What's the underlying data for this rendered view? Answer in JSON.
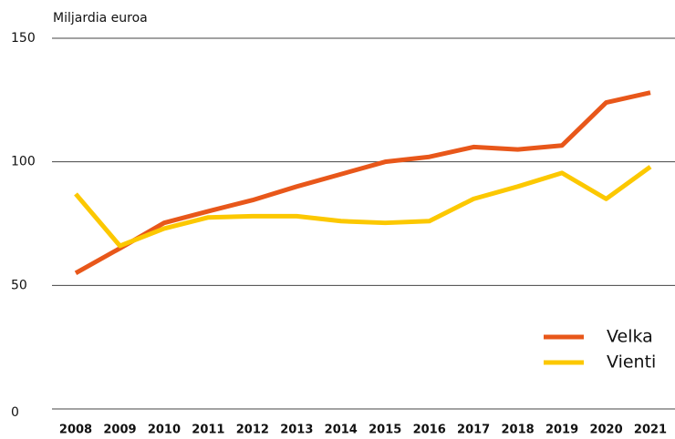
{
  "chart_data": {
    "type": "line",
    "y_label": "Miljardia euroa",
    "categories": [
      "2008",
      "2009",
      "2010",
      "2011",
      "2012",
      "2013",
      "2014",
      "2015",
      "2016",
      "2017",
      "2018",
      "2019",
      "2020",
      "2021"
    ],
    "series": [
      {
        "name": "Velka",
        "color": "#e8571a",
        "values": [
          55,
          65,
          75.3,
          80,
          84.5,
          90,
          95,
          100,
          102,
          106,
          105,
          106.6,
          124,
          128
        ]
      },
      {
        "name": "Vienti",
        "color": "#fcc800",
        "values": [
          87,
          66,
          73,
          77.5,
          78,
          78,
          76,
          75.3,
          76,
          85,
          90,
          95.5,
          85,
          98
        ]
      }
    ],
    "ylim": [
      0,
      150
    ],
    "yticks": [
      0,
      50,
      100,
      150
    ],
    "grid": true,
    "legend": "lower right"
  }
}
